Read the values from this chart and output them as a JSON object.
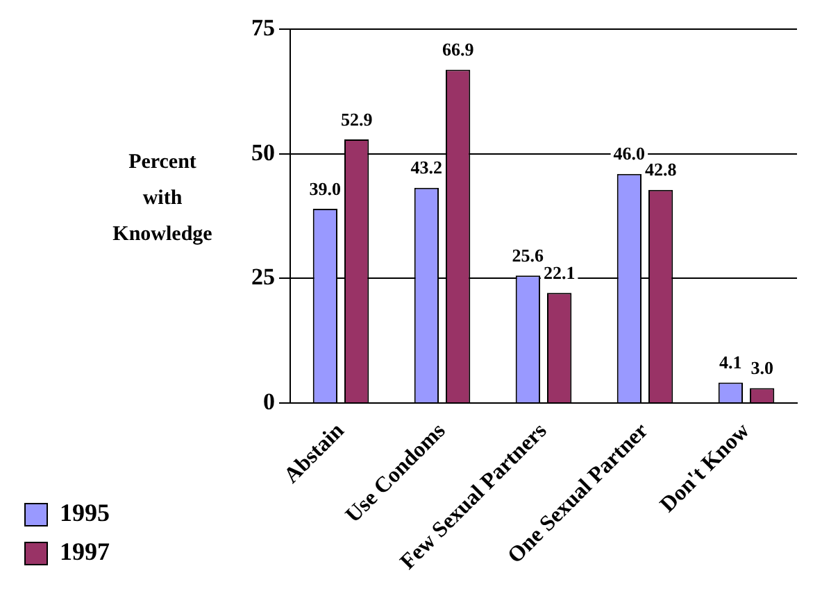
{
  "chart_data": {
    "type": "bar",
    "ylabel": "Percent with Knowledge",
    "categories": [
      "Abstain",
      "Use Condoms",
      "Few Sexual Partners",
      "One Sexual Partner",
      "Don't Know"
    ],
    "series": [
      {
        "name": "1995",
        "color": "#9999ff",
        "values": [
          39.0,
          43.2,
          25.6,
          46.0,
          4.1
        ]
      },
      {
        "name": "1997",
        "color": "#993366",
        "values": [
          52.9,
          66.9,
          22.1,
          42.8,
          3.0
        ]
      }
    ],
    "value_labels": [
      [
        "39.0",
        "43.2",
        "25.6",
        "46.0",
        "4.1"
      ],
      [
        "52.9",
        "66.9",
        "22.1",
        "42.8",
        "3.0"
      ]
    ],
    "ylim": [
      0,
      75
    ],
    "yticks": [
      0,
      25,
      50,
      75
    ],
    "grid": "y",
    "legend": "bottom left"
  }
}
